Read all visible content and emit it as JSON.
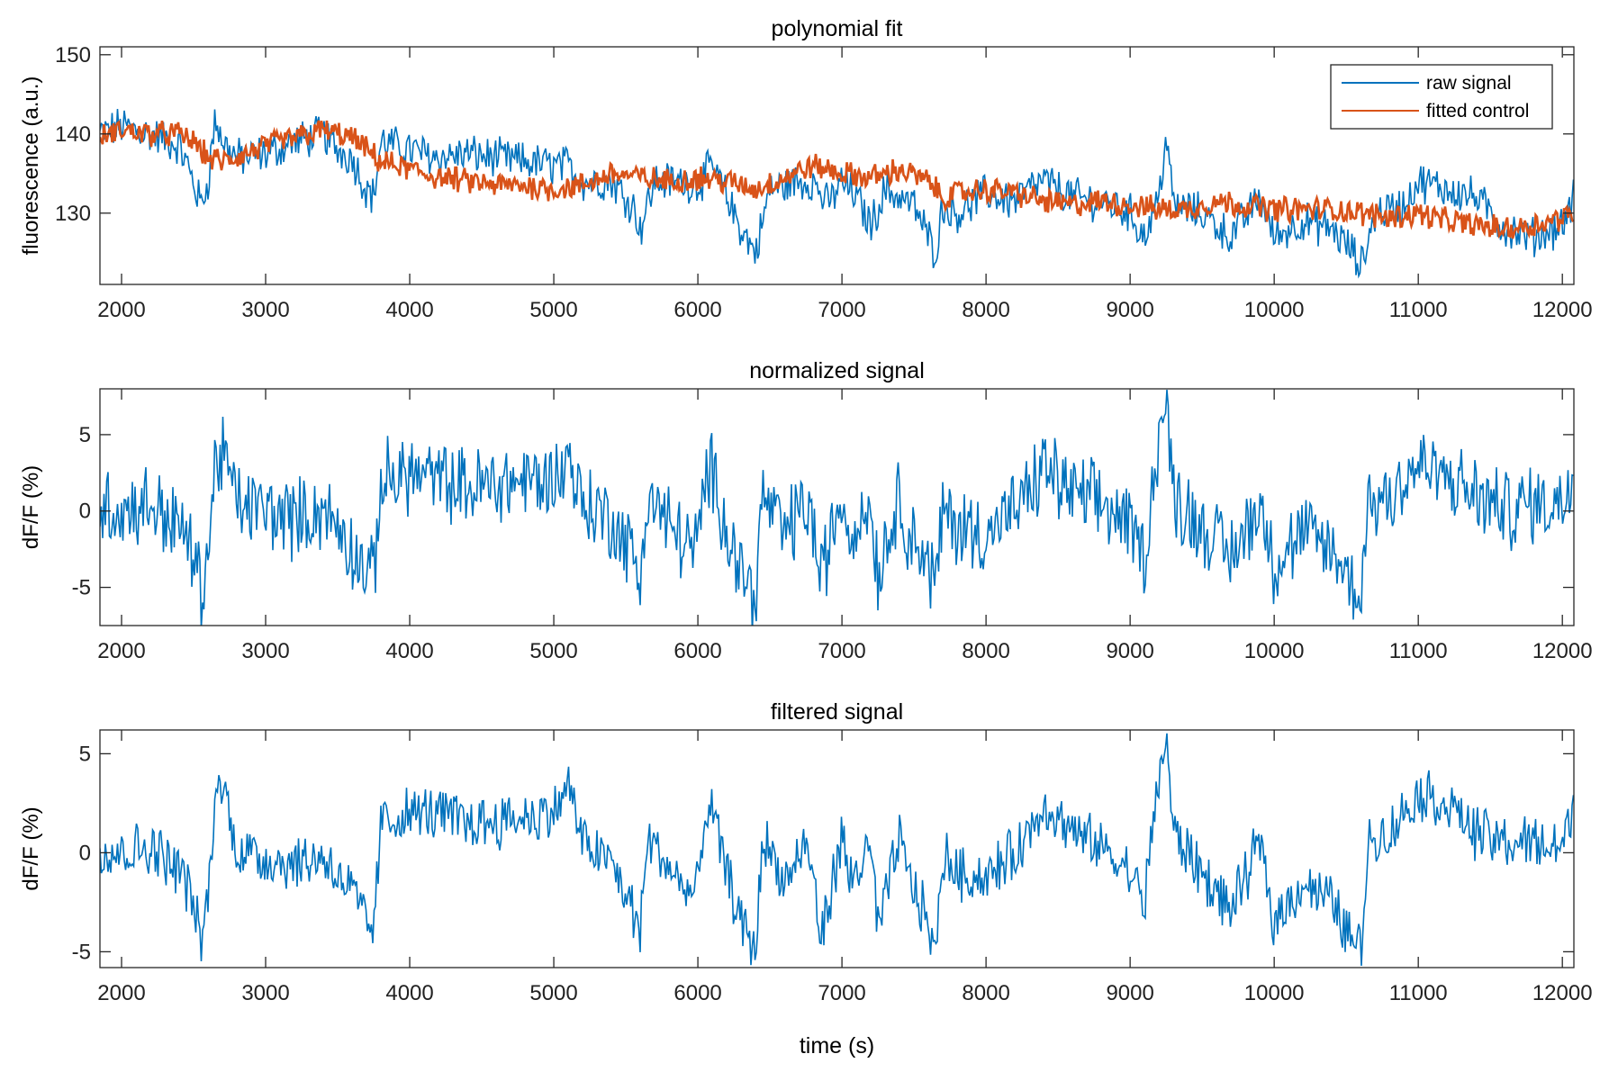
{
  "chart_data": [
    {
      "type": "line",
      "title": "polynomial fit",
      "xlabel": "",
      "ylabel": "fluorescence (a.u.)",
      "xlim": [
        1850,
        12080
      ],
      "ylim": [
        121,
        151
      ],
      "xticks": [
        2000,
        3000,
        4000,
        5000,
        6000,
        7000,
        8000,
        9000,
        10000,
        11000,
        12000
      ],
      "yticks": [
        130,
        140,
        150
      ],
      "legend": "top-right",
      "series": [
        {
          "name": "raw signal",
          "color": "#0072BD",
          "x": [
            1850,
            2000,
            2200,
            2400,
            2480,
            2550,
            2600,
            2650,
            2700,
            2800,
            3000,
            3200,
            3400,
            3500,
            3600,
            3700,
            3750,
            3800,
            4000,
            4200,
            4400,
            4600,
            4800,
            5000,
            5100,
            5200,
            5400,
            5550,
            5600,
            5700,
            5900,
            6000,
            6100,
            6200,
            6300,
            6400,
            6500,
            6700,
            6800,
            6900,
            7000,
            7100,
            7200,
            7300,
            7400,
            7500,
            7600,
            7650,
            7700,
            7800,
            8000,
            8200,
            8300,
            8400,
            8600,
            8800,
            9000,
            9100,
            9200,
            9250,
            9300,
            9500,
            9700,
            9900,
            10000,
            10200,
            10400,
            10550,
            10600,
            10700,
            10900,
            11000,
            11200,
            11400,
            11600,
            11800,
            12000,
            12080
          ],
          "y": [
            140,
            141,
            140,
            138.5,
            135,
            131,
            134,
            142,
            139,
            137,
            137.5,
            139,
            140,
            138,
            137,
            133,
            132,
            139,
            138,
            137,
            137.5,
            137,
            136.5,
            136,
            136,
            134,
            134,
            131,
            128,
            134,
            134,
            133.5,
            136,
            132,
            128,
            125,
            133,
            134,
            134,
            131,
            134,
            132,
            128.5,
            133,
            132,
            131,
            127,
            125,
            131,
            130,
            132.5,
            131.5,
            133,
            134,
            132,
            131.5,
            130,
            127,
            132,
            140,
            131,
            130,
            127,
            132,
            127,
            129,
            128,
            125,
            123,
            130,
            131,
            134,
            133,
            132,
            128,
            127,
            128.5,
            132
          ]
        },
        {
          "name": "fitted control",
          "color": "#D95319",
          "x": [
            1850,
            2000,
            2200,
            2400,
            2500,
            2600,
            2700,
            2800,
            3000,
            3200,
            3400,
            3500,
            3600,
            3700,
            3800,
            4000,
            4200,
            4400,
            4600,
            4800,
            5000,
            5200,
            5400,
            5600,
            5800,
            6000,
            6200,
            6400,
            6600,
            6800,
            7000,
            7200,
            7400,
            7600,
            7700,
            7800,
            8000,
            8200,
            8400,
            8600,
            8800,
            9000,
            9200,
            9400,
            9600,
            9800,
            10000,
            10200,
            10400,
            10600,
            10800,
            11000,
            11200,
            11400,
            11600,
            11800,
            12000,
            12080
          ],
          "y": [
            139.5,
            140.5,
            140,
            140,
            139,
            137,
            136.5,
            137,
            138.5,
            139.5,
            140.5,
            140,
            139.5,
            138,
            136.5,
            135.5,
            134.5,
            134,
            133.5,
            133.5,
            133,
            133.5,
            135,
            134.5,
            134,
            134.5,
            134,
            133,
            134.5,
            136,
            135,
            134.5,
            135.5,
            134,
            132,
            132.5,
            133,
            132.5,
            131.5,
            131,
            131.5,
            131,
            130.5,
            130.5,
            131.5,
            131,
            130.5,
            130.5,
            130.5,
            130,
            129.5,
            130,
            129,
            128.5,
            128,
            128.5,
            129.5,
            129.5
          ]
        }
      ]
    },
    {
      "type": "line",
      "title": "normalized signal",
      "xlabel": "",
      "ylabel": "dF/F (%)",
      "xlim": [
        1850,
        12080
      ],
      "ylim": [
        -7.5,
        8
      ],
      "xticks": [
        2000,
        3000,
        4000,
        5000,
        6000,
        7000,
        8000,
        9000,
        10000,
        11000,
        12000
      ],
      "yticks": [
        -5,
        0,
        5
      ],
      "series": [
        {
          "color": "#0072BD",
          "x": [
            1850,
            2000,
            2200,
            2400,
            2480,
            2550,
            2600,
            2650,
            2700,
            2800,
            3000,
            3200,
            3400,
            3500,
            3600,
            3700,
            3750,
            3800,
            4000,
            4200,
            4400,
            4600,
            4800,
            5000,
            5100,
            5200,
            5400,
            5550,
            5600,
            5650,
            5900,
            6000,
            6050,
            6100,
            6200,
            6300,
            6400,
            6450,
            6600,
            6750,
            6800,
            6850,
            7000,
            7050,
            7200,
            7250,
            7400,
            7450,
            7600,
            7650,
            7700,
            7800,
            8000,
            8200,
            8300,
            8400,
            8600,
            8800,
            9000,
            9100,
            9200,
            9250,
            9300,
            9500,
            9700,
            9900,
            10000,
            10200,
            10400,
            10550,
            10600,
            10650,
            10800,
            11000,
            11200,
            11400,
            11600,
            11800,
            12000,
            12080
          ],
          "y": [
            0.5,
            0,
            0.5,
            -1,
            -2.5,
            -5,
            -3,
            3,
            4,
            0.5,
            0,
            -0.5,
            0,
            -1,
            -2.5,
            -4,
            -4.5,
            2,
            2.5,
            2,
            1.5,
            1.8,
            2,
            2,
            3.5,
            0.5,
            -0.5,
            -3,
            -4.5,
            1,
            -2,
            -2.5,
            2,
            2.5,
            -1,
            -4,
            -5.5,
            1,
            -1.5,
            0.5,
            -1,
            -4.5,
            1,
            -1.5,
            0.5,
            -4,
            1,
            -1,
            -3.5,
            -5,
            0,
            -1,
            -1.5,
            0,
            1,
            3,
            1,
            0.5,
            -1,
            -3,
            5,
            7,
            1,
            -1,
            -3,
            0.5,
            -3.5,
            -1.5,
            -2.5,
            -5,
            -5.5,
            0.5,
            1,
            3,
            2,
            1,
            0,
            0.5,
            0.5,
            3
          ]
        }
      ]
    },
    {
      "type": "line",
      "title": "filtered signal",
      "xlabel": "time (s)",
      "ylabel": "dF/F (%)",
      "xlim": [
        1850,
        12080
      ],
      "ylim": [
        -5.8,
        6.2
      ],
      "xticks": [
        2000,
        3000,
        4000,
        5000,
        6000,
        7000,
        8000,
        9000,
        10000,
        11000,
        12000
      ],
      "yticks": [
        -5,
        0,
        5
      ],
      "series": [
        {
          "color": "#0072BD",
          "x": [
            1850,
            2000,
            2200,
            2400,
            2480,
            2550,
            2600,
            2650,
            2700,
            2800,
            3000,
            3200,
            3400,
            3500,
            3600,
            3700,
            3750,
            3800,
            4000,
            4200,
            4400,
            4600,
            4800,
            5000,
            5100,
            5200,
            5400,
            5550,
            5600,
            5650,
            5900,
            6000,
            6050,
            6100,
            6200,
            6300,
            6400,
            6450,
            6600,
            6750,
            6800,
            6850,
            7000,
            7050,
            7200,
            7250,
            7400,
            7450,
            7600,
            7650,
            7700,
            7800,
            8000,
            8200,
            8300,
            8400,
            8600,
            8800,
            9000,
            9100,
            9200,
            9250,
            9300,
            9500,
            9700,
            9900,
            10000,
            10200,
            10400,
            10550,
            10600,
            10650,
            10800,
            11000,
            11200,
            11400,
            11600,
            11800,
            12000,
            12080
          ],
          "y": [
            0.3,
            0,
            0.3,
            -0.8,
            -2,
            -4.5,
            -2.5,
            3,
            3.5,
            0.2,
            -0.3,
            -0.5,
            -0.2,
            -1,
            -2,
            -3.5,
            -4,
            1.5,
            2,
            2,
            1.5,
            1.6,
            1.8,
            2,
            3.5,
            0.5,
            -0.5,
            -3,
            -4,
            0.8,
            -1.8,
            -2,
            2,
            2,
            -1,
            -3.5,
            -5,
            0.8,
            -1.5,
            0.3,
            -1,
            -4.5,
            0.8,
            -1.5,
            0.3,
            -4,
            0.8,
            -1,
            -3.5,
            -5.5,
            0,
            -1,
            -1.3,
            0,
            1,
            2.5,
            1,
            0.3,
            -1,
            -2.5,
            4,
            5.8,
            1,
            -1,
            -3,
            0.5,
            -3.5,
            -1.5,
            -2.5,
            -4.5,
            -5,
            0.5,
            1,
            3,
            2.5,
            1,
            0.5,
            0.5,
            0.3,
            2.5
          ]
        }
      ]
    }
  ]
}
